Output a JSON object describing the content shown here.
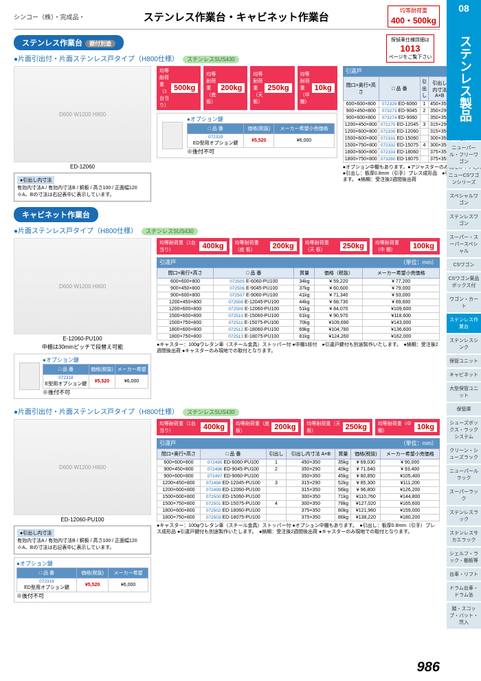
{
  "header": {
    "brand": "シンコー（株）・完成品・",
    "title": "ステンレス作業台・キャビネット作業台",
    "load_badge_label": "均等耐荷重",
    "load_badge_value": "400・500kg"
  },
  "sidebar": {
    "num": "08",
    "cat": "ステンレス製品",
    "items": [
      "ニューパール・フリーワゴン",
      "ニューCSワゴンシリーズ",
      "スペシャルワゴン",
      "ステンレスワゴン",
      "スーパー・スーパースペシャル",
      "CSワゴン",
      "CSワゴン薬品ボックス付",
      "ワゴン・カート",
      "ステンレス作業台",
      "ステンレスシンク",
      "保管ユニット",
      "キャビネット",
      "大型保管ユニット",
      "保管庫",
      "シューズボックス・ラックシステム",
      "クリーン・シューズラック",
      "ニューパールラック",
      "スーパーラック",
      "ステンレスラック",
      "ステンレスサカエラック",
      "シェルフ・ラック・棚板等",
      "台車・リフト",
      "ドラム台車・ドラム缶",
      "踏・スコップ・バット・笊入"
    ]
  },
  "ref_box": {
    "label": "探偵車仕様詳細は",
    "num": "1013",
    "sub": "ページをご覧下さい"
  },
  "section1": {
    "pill": "ステンレス作業台",
    "pill_tag": "据付別途",
    "subhead": "●片面引出付・片面ステンレス戸タイプ（H800仕様）",
    "sus": "ステンレスSUS430",
    "img_cap": "ED-12060",
    "loads": [
      {
        "label": "均等耐荷重（1台当り）",
        "val": "500kg"
      },
      {
        "label": "均等耐荷重（底 板）",
        "val": "200kg"
      },
      {
        "label": "均等耐荷重（天 板）",
        "val": "250kg"
      },
      {
        "label": "均等耐荷重（中 棚）",
        "val": "10kg"
      }
    ],
    "tbl_title": "引違戸",
    "unit": "（単位：mm）",
    "headers": [
      "間口×奥行×高さ",
      "□ 品 番",
      "引出し",
      "引出し内寸法 A×B",
      "質量",
      "価格（税抜）",
      "メーカー希望小売価格"
    ],
    "rows": [
      {
        "dim": "600×600×800",
        "sku": "072329",
        "code": "ED-6060",
        "drawer": "1",
        "size": "450×350",
        "mass": "29kg",
        "price": "¥ 48,750",
        "list": "¥ 63,400"
      },
      {
        "dim": "900×450×800",
        "sku": "073273",
        "code": "ED-9045",
        "drawer": "2",
        "size": "350×290",
        "mass": "34kg",
        "price": "¥ 51,250",
        "list": "¥ 66,800"
      },
      {
        "dim": "900×600×800",
        "sku": "073274",
        "code": "ED-9060",
        "drawer": "",
        "size": "350×350",
        "mass": "39kg",
        "price": "¥ 60,630",
        "list": "¥ 78,800"
      },
      {
        "dim": "1200×450×800",
        "sku": "072275",
        "code": "ED-12045",
        "drawer": "3",
        "size": "315×290",
        "mass": "46kg",
        "price": "¥ 65,000",
        "list": "¥ 84,600"
      },
      {
        "dim": "1200×600×800",
        "sku": "072330",
        "code": "ED-12060",
        "drawer": "",
        "size": "315×350",
        "mass": "50kg",
        "price": "¥ 76,880",
        "list": "¥ 99,600"
      },
      {
        "dim": "1500×600×800",
        "sku": "072331",
        "code": "ED-15060",
        "drawer": "",
        "size": "300×350",
        "mass": "65kg",
        "price": "¥ 91,250",
        "list": "¥118,200"
      },
      {
        "dim": "1500×750×800",
        "sku": "072332",
        "code": "ED-15075",
        "drawer": "4",
        "size": "300×350",
        "mass": "71kg",
        "price": "¥106,880",
        "list": "¥139,000"
      },
      {
        "dim": "1800×600×800",
        "sku": "072333",
        "code": "ED-18060",
        "drawer": "",
        "size": "375×350",
        "mass": "74kg",
        "price": "¥101,880",
        "list": "¥132,400"
      },
      {
        "dim": "1800×750×800",
        "sku": "073280",
        "code": "ED-18075",
        "drawer": "",
        "size": "375×350",
        "mass": "79kg",
        "price": "¥118,130",
        "list": "¥153,600"
      }
    ],
    "notes": "●オプション中棚もあります。●アジャスターのみ現地のネジ込みとなります。\n●引出し：板厚0.8mm（引手）プレス成形品　●引違戸鍵付も別途製作いたします。\n●納期：受注後2週間後出荷",
    "dims_title": "●引出し内寸法",
    "dims_text": "有効内寸法A / 有効内寸法B / 銅板 / 高さ100 / 正面幅120\n※A、Bの寸法は右記表中に表示しています。",
    "option": {
      "title": "●オプション鍵",
      "headers": [
        "□ 品 番",
        "価格(税抜)",
        "メーカー希望小売価格"
      ],
      "sku": "072319",
      "name": "ED型用オプション鍵",
      "price": "¥5,520",
      "list": "¥6,000",
      "note": "※後付不可"
    }
  },
  "section2": {
    "pill": "キャビネット作業台",
    "subhead": "●片面ステンレス戸タイプ（H800仕様）",
    "sus": "ステンレスSUS430",
    "img_cap": "E-12060-PU100",
    "img_sub": "中棚は30mmピッチで段替え可能",
    "loads": [
      {
        "label": "均等耐荷重（1台当り）",
        "val": "400kg"
      },
      {
        "label": "均等耐荷重（底 板）",
        "val": "200kg"
      },
      {
        "label": "均等耐荷重（天 板）",
        "val": "250kg"
      },
      {
        "label": "均等耐荷重（中 棚）",
        "val": "100kg"
      }
    ],
    "tbl_title": "引違戸",
    "unit": "（単位：mm）",
    "headers": [
      "間口×奥行×高さ",
      "□ 品 番",
      "質量",
      "価格（税抜）",
      "メーカー希望小売価格"
    ],
    "rows": [
      {
        "dim": "600×600×800",
        "sku": "072505",
        "code": "E-6060-PU100",
        "mass": "34kg",
        "price": "¥ 59,220",
        "list": "¥ 77,200"
      },
      {
        "dim": "900×450×800",
        "sku": "072506",
        "code": "E-9045-PU100",
        "mass": "37kg",
        "price": "¥ 60,600",
        "list": "¥ 79,000"
      },
      {
        "dim": "900×600×800",
        "sku": "072507",
        "code": "E-9060-PU100",
        "mass": "41kg",
        "price": "¥ 71,340",
        "list": "¥ 93,000"
      },
      {
        "dim": "1200×450×800",
        "sku": "072508",
        "code": "E-12045-PU100",
        "mass": "44kg",
        "price": "¥ 68,730",
        "list": "¥ 89,600"
      },
      {
        "dim": "1200×600×800",
        "sku": "072509",
        "code": "E-12060-PU100",
        "mass": "51kg",
        "price": "¥ 84,070",
        "list": "¥109,600"
      },
      {
        "dim": "1500×600×800",
        "sku": "072510",
        "code": "E-15060-PU100",
        "mass": "61kg",
        "price": "¥ 90,970",
        "list": "¥118,600"
      },
      {
        "dim": "1500×750×800",
        "sku": "072511",
        "code": "E-15075-PU100",
        "mass": "70kg",
        "price": "¥109,690",
        "list": "¥143,000"
      },
      {
        "dim": "1800×600×800",
        "sku": "072512",
        "code": "E-18060-PU100",
        "mass": "69kg",
        "price": "¥104,780",
        "list": "¥136,600"
      },
      {
        "dim": "1800×750×800",
        "sku": "072513",
        "code": "E-18075-PU100",
        "mass": "81kg",
        "price": "¥124,260",
        "list": "¥162,000"
      }
    ],
    "notes": "●キャスター：100φウレタン車（スチール金具）ストッパー付\n●中棚1段付　●引違戸鍵付も別途製作いたします。　●納期：受注後2週間後出荷\n●キャスターのみ現地での取付となります。",
    "option": {
      "title": "●オプション鍵",
      "sku": "072318",
      "name": "E型用オプション鍵",
      "price": "¥5,520",
      "list": "¥6,000",
      "note": "※後付不可"
    }
  },
  "section3": {
    "subhead": "●片面引出付・片面ステンレス戸タイプ（H800仕様）",
    "sus": "ステンレスSUS430",
    "img_cap": "ED-12060-PU100",
    "loads": [
      {
        "label": "均等耐荷重（1台当り）",
        "val": "400kg"
      },
      {
        "label": "均等耐荷重（底 板）",
        "val": "200kg"
      },
      {
        "label": "均等耐荷重（天 板）",
        "val": "250kg"
      },
      {
        "label": "均等耐荷重（中 棚）",
        "val": "10kg"
      }
    ],
    "tbl_title": "引違戸",
    "unit": "（単位：mm）",
    "headers": [
      "間口×奥行×高さ",
      "□ 品 番",
      "引出し",
      "引出し内寸法 A×B",
      "質量",
      "価格(税抜)",
      "メーカー希望小売価格"
    ],
    "rows": [
      {
        "dim": "600×600×800",
        "sku": "072495",
        "code": "ED-6060-PU100",
        "drawer": "1",
        "size": "450×350",
        "mass": "35kg",
        "price": "¥ 69,030",
        "list": "¥ 90,000"
      },
      {
        "dim": "900×450×800",
        "sku": "072496",
        "code": "ED-9045-PU100",
        "drawer": "2",
        "size": "350×290",
        "mass": "40kg",
        "price": "¥ 71,640",
        "list": "¥ 93,400"
      },
      {
        "dim": "900×600×800",
        "sku": "072497",
        "code": "ED-9060-PU100",
        "drawer": "",
        "size": "350×350",
        "mass": "45kg",
        "price": "¥ 80,850",
        "list": "¥105,400"
      },
      {
        "dim": "1200×450×800",
        "sku": "072498",
        "code": "ED-12045-PU100",
        "drawer": "3",
        "size": "315×290",
        "mass": "52kg",
        "price": "¥ 85,300",
        "list": "¥111,200"
      },
      {
        "dim": "1200×600×800",
        "sku": "072499",
        "code": "ED-12060-PU100",
        "drawer": "",
        "size": "315×350",
        "mass": "56kg",
        "price": "¥ 96,800",
        "list": "¥126,200"
      },
      {
        "dim": "1500×600×800",
        "sku": "072500",
        "code": "ED-15060-PU100",
        "drawer": "",
        "size": "300×350",
        "mass": "71kg",
        "price": "¥110,760",
        "list": "¥144,800"
      },
      {
        "dim": "1500×750×800",
        "sku": "072501",
        "code": "ED-15075-PU100",
        "drawer": "4",
        "size": "300×350",
        "mass": "78kg",
        "price": "¥127,020",
        "list": "¥165,600"
      },
      {
        "dim": "1800×600×800",
        "sku": "072502",
        "code": "ED-18060-PU100",
        "drawer": "",
        "size": "375×350",
        "mass": "80kg",
        "price": "¥121,960",
        "list": "¥159,000"
      },
      {
        "dim": "1800×750×800",
        "sku": "072503",
        "code": "ED-18075-PU100",
        "drawer": "",
        "size": "375×350",
        "mass": "86kg",
        "price": "¥138,220",
        "list": "¥180,200"
      }
    ],
    "notes": "●キャスター：100φウレタン車（スチール金具）ストッパー付\n●オプション中棚もあります。　●引出し：板厚0.8mm（引手）プレス成形品\n●引違戸鍵付も別途製作いたします。　●納期：受注後2週間後出荷\n●キャスターのみ現地での取付となります。",
    "dims_title": "●引出し内寸法",
    "option": {
      "title": "●オプション鍵",
      "sku": "072319",
      "name": "ED型用オプション鍵",
      "price": "¥5,520",
      "list": "¥6,000",
      "note": "※後付不可"
    }
  },
  "page_num": "986"
}
